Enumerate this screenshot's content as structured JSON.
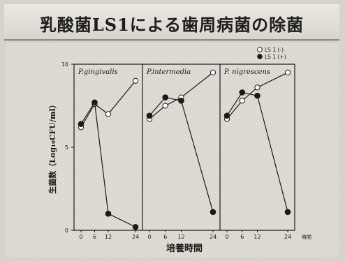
{
  "slide": {
    "title": "乳酸菌LS1による歯周病菌の除菌"
  },
  "chart_data": {
    "type": "line",
    "ylabel": "生菌数（Log₁₀CFU/ml）",
    "xlabel": "培養時間",
    "x_unit": "時間",
    "ylim": [
      0,
      10
    ],
    "y_ticks": [
      "0",
      "5",
      "10"
    ],
    "x_ticks": [
      "0",
      "6",
      "12",
      "24"
    ],
    "legend": {
      "position": "top-right",
      "entries": [
        {
          "label": "LS 1 (-)",
          "marker": "open-circle"
        },
        {
          "label": "LS 1 (+)",
          "marker": "filled-circle"
        }
      ]
    },
    "panels": [
      {
        "title": "P.gingivalis",
        "series": [
          {
            "name": "LS 1 (-)",
            "x": [
              0,
              6,
              12,
              24
            ],
            "y": [
              6.2,
              7.6,
              7.0,
              9.0
            ]
          },
          {
            "name": "LS 1 (+)",
            "x": [
              0,
              6,
              12,
              24
            ],
            "y": [
              6.4,
              7.7,
              1.0,
              0.2
            ]
          }
        ]
      },
      {
        "title": "P.intermedia",
        "series": [
          {
            "name": "LS 1 (-)",
            "x": [
              0,
              6,
              12,
              24
            ],
            "y": [
              6.7,
              7.5,
              8.0,
              9.5
            ]
          },
          {
            "name": "LS 1 (+)",
            "x": [
              0,
              6,
              12,
              24
            ],
            "y": [
              6.9,
              8.0,
              7.8,
              1.1
            ]
          }
        ]
      },
      {
        "title": "P. nigrescens",
        "series": [
          {
            "name": "LS 1 (-)",
            "x": [
              0,
              6,
              12,
              24
            ],
            "y": [
              6.7,
              7.8,
              8.6,
              9.5
            ]
          },
          {
            "name": "LS 1 (+)",
            "x": [
              0,
              6,
              12,
              24
            ],
            "y": [
              6.9,
              8.3,
              8.1,
              1.1
            ]
          }
        ]
      }
    ]
  }
}
